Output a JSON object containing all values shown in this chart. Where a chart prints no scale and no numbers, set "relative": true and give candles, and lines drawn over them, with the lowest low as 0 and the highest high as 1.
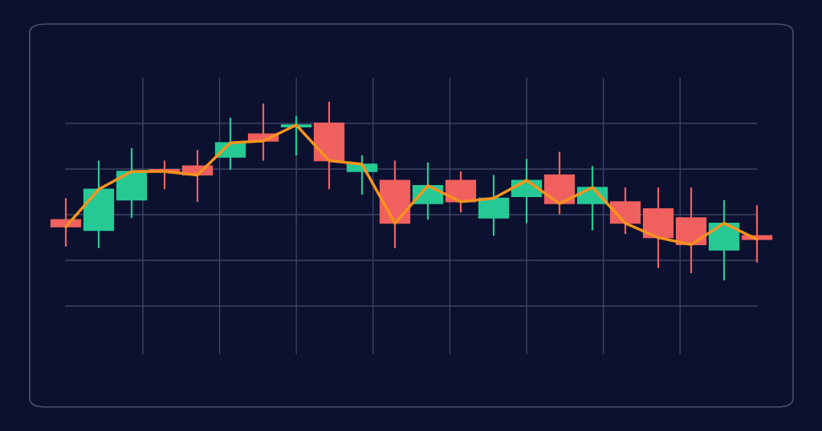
{
  "chart_data": {
    "type": "candlestick",
    "relative": true,
    "grid": true,
    "categories": [
      null,
      null,
      null,
      null,
      null,
      null,
      null,
      null,
      null,
      null,
      null,
      null,
      null,
      null,
      null,
      null,
      null,
      null,
      null,
      null,
      null,
      null
    ],
    "ohlc": [
      [
        0.34,
        0.46,
        0.19,
        0.3
      ],
      [
        0.28,
        0.67,
        0.18,
        0.51
      ],
      [
        0.45,
        0.74,
        0.35,
        0.61
      ],
      [
        0.62,
        0.67,
        0.51,
        0.61
      ],
      [
        0.64,
        0.73,
        0.44,
        0.59
      ],
      [
        0.69,
        0.91,
        0.62,
        0.77
      ],
      [
        0.82,
        0.99,
        0.67,
        0.78
      ],
      [
        0.86,
        0.92,
        0.7,
        0.87
      ],
      [
        0.88,
        1,
        0.51,
        0.67
      ],
      [
        0.61,
        0.7,
        0.48,
        0.65
      ],
      [
        0.56,
        0.67,
        0.18,
        0.32
      ],
      [
        0.43,
        0.66,
        0.34,
        0.53
      ],
      [
        0.56,
        0.61,
        0.38,
        0.44
      ],
      [
        0.35,
        0.59,
        0.25,
        0.46
      ],
      [
        0.47,
        0.68,
        0.32,
        0.56
      ],
      [
        0.59,
        0.72,
        0.37,
        0.43
      ],
      [
        0.43,
        0.64,
        0.28,
        0.52
      ],
      [
        0.44,
        0.52,
        0.26,
        0.32
      ],
      [
        0.4,
        0.52,
        0.07,
        0.24
      ],
      [
        0.35,
        0.52,
        0.04,
        0.2
      ],
      [
        0.17,
        0.45,
        0,
        0.32
      ],
      [
        0.25,
        0.42,
        0.1,
        0.23
      ]
    ],
    "colors": [
      "#f0605e",
      "#26c994",
      "#26c994",
      "#f0605e",
      "#f0605e",
      "#26c994",
      "#f0605e",
      "#26c994",
      "#f0605e",
      "#26c994",
      "#f0605e",
      "#26c994",
      "#f0605e",
      "#26c994",
      "#26c994",
      "#f0605e",
      "#26c994",
      "#f0605e",
      "#f0605e",
      "#f0605e",
      "#26c994",
      "#f0605e"
    ],
    "series": [
      {
        "type": "line",
        "color": "#f7941d",
        "values": [
          0.3,
          0.51,
          0.61,
          0.61,
          0.59,
          0.77,
          0.78,
          0.87,
          0.67,
          0.65,
          0.32,
          0.53,
          0.44,
          0.46,
          0.56,
          0.43,
          0.52,
          0.32,
          0.24,
          0.2,
          0.32,
          0.23
        ]
      }
    ]
  }
}
